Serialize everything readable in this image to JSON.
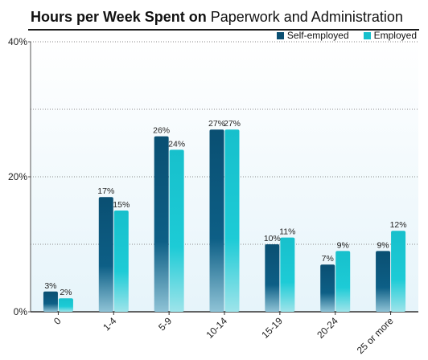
{
  "title": {
    "bold_part": "Hours per Week Spent on",
    "regular_part": "Paperwork and Administration"
  },
  "legend": [
    {
      "name": "Self-employed",
      "color": "#0a4f72"
    },
    {
      "name": "Employed",
      "color": "#17c0cc"
    }
  ],
  "chart_data": {
    "type": "bar",
    "title": "Hours per Week Spent on Paperwork and Administration",
    "categories": [
      "0",
      "1-4",
      "5-9",
      "10-14",
      "15-19",
      "20-24",
      "25 or more"
    ],
    "series": [
      {
        "name": "Self-employed",
        "values": [
          3,
          17,
          26,
          27,
          10,
          7,
          9
        ],
        "labels": [
          "3%",
          "17%",
          "26%",
          "27%",
          "10%",
          "7%",
          "9%"
        ],
        "color": "#0a4f72"
      },
      {
        "name": "Employed",
        "values": [
          2,
          15,
          24,
          27,
          11,
          9,
          12
        ],
        "labels": [
          "2%",
          "15%",
          "24%",
          "27%",
          "11%",
          "9%",
          "12%"
        ],
        "color": "#17c0cc"
      }
    ],
    "yticks": [
      "0%",
      "20%",
      "40%"
    ],
    "ylim": [
      0,
      40
    ],
    "xlabel": "",
    "ylabel": "",
    "grid": true,
    "legend_position": "top-right"
  }
}
